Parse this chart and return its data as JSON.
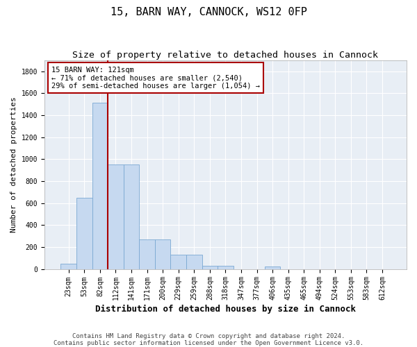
{
  "title": "15, BARN WAY, CANNOCK, WS12 0FP",
  "subtitle": "Size of property relative to detached houses in Cannock",
  "xlabel": "Distribution of detached houses by size in Cannock",
  "ylabel": "Number of detached properties",
  "categories": [
    "23sqm",
    "53sqm",
    "82sqm",
    "112sqm",
    "141sqm",
    "171sqm",
    "200sqm",
    "229sqm",
    "259sqm",
    "288sqm",
    "318sqm",
    "347sqm",
    "377sqm",
    "406sqm",
    "435sqm",
    "465sqm",
    "494sqm",
    "524sqm",
    "553sqm",
    "583sqm",
    "612sqm"
  ],
  "values": [
    50,
    645,
    1510,
    950,
    950,
    270,
    270,
    130,
    130,
    30,
    30,
    0,
    0,
    25,
    0,
    0,
    0,
    0,
    0,
    0,
    0
  ],
  "bar_color": "#c6d9f0",
  "bar_edge_color": "#7aa8d2",
  "vline_color": "#aa0000",
  "vline_index": 2.5,
  "annotation_text": "15 BARN WAY: 121sqm\n← 71% of detached houses are smaller (2,540)\n29% of semi-detached houses are larger (1,054) →",
  "annotation_box_facecolor": "#ffffff",
  "annotation_box_edgecolor": "#aa0000",
  "ylim": [
    0,
    1900
  ],
  "yticks": [
    0,
    200,
    400,
    600,
    800,
    1000,
    1200,
    1400,
    1600,
    1800
  ],
  "background_color": "#e8eef5",
  "grid_color": "#d0d8e4",
  "footer_text": "Contains HM Land Registry data © Crown copyright and database right 2024.\nContains public sector information licensed under the Open Government Licence v3.0.",
  "title_fontsize": 11,
  "subtitle_fontsize": 9.5,
  "xlabel_fontsize": 9,
  "ylabel_fontsize": 8,
  "tick_fontsize": 7,
  "annotation_fontsize": 7.5,
  "footer_fontsize": 6.5
}
